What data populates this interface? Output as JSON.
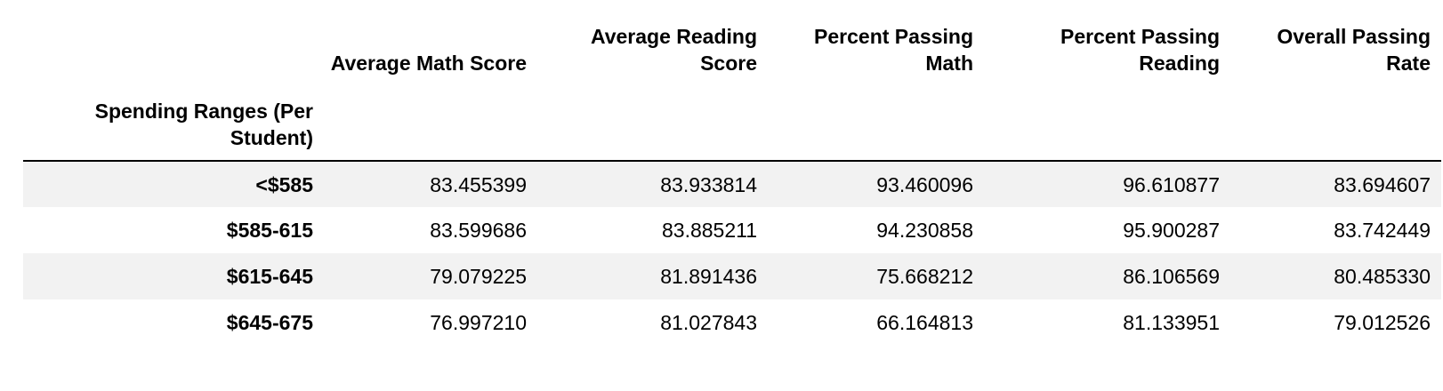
{
  "table": {
    "index_name": "Spending Ranges (Per Student)",
    "columns": [
      "Average Math Score",
      "Average Reading Score",
      "Percent Passing Math",
      "Percent Passing Reading",
      "Overall Passing Rate"
    ],
    "rows": [
      {
        "label": "<$585",
        "values": [
          "83.455399",
          "83.933814",
          "93.460096",
          "96.610877",
          "83.694607"
        ]
      },
      {
        "label": "$585-615",
        "values": [
          "83.599686",
          "83.885211",
          "94.230858",
          "95.900287",
          "83.742449"
        ]
      },
      {
        "label": "$615-645",
        "values": [
          "79.079225",
          "81.891436",
          "75.668212",
          "86.106569",
          "80.485330"
        ]
      },
      {
        "label": "$645-675",
        "values": [
          "76.997210",
          "81.027843",
          "66.164813",
          "81.133951",
          "79.012526"
        ]
      }
    ]
  },
  "style": {
    "stripe_color": "#f2f2f2",
    "header_rule_color": "#000000"
  }
}
